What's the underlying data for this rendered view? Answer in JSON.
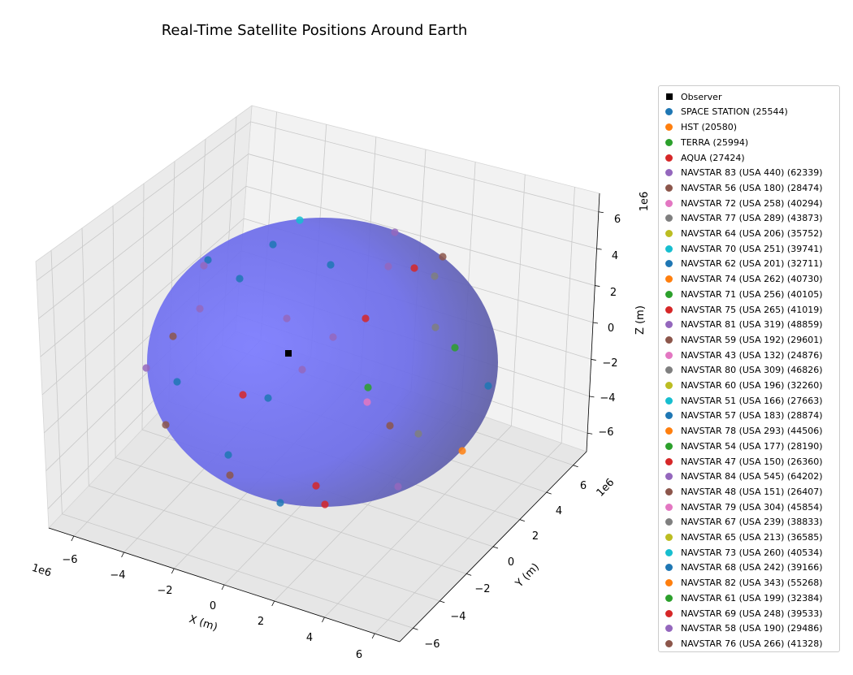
{
  "chart_data": {
    "type": "scatter",
    "projection": "3d",
    "title": "Real-Time Satellite Positions Around Earth",
    "xlabel": "X (m)",
    "ylabel": "Y (m)",
    "zlabel": "Z (m)",
    "x_offset_label": "1e6",
    "y_offset_label": "1e6",
    "z_offset_label": "1e6",
    "xlim": [
      -7,
      7
    ],
    "ylim": [
      -7,
      7
    ],
    "zlim": [
      -7,
      7
    ],
    "x_ticks": [
      "−6",
      "−4",
      "−2",
      "0",
      "2",
      "4",
      "6"
    ],
    "y_ticks": [
      "−6",
      "−4",
      "−2",
      "0",
      "2",
      "4",
      "6"
    ],
    "z_ticks": [
      "6",
      "4",
      "2",
      "0",
      "−2",
      "−4",
      "−6"
    ],
    "grid": true,
    "legend_position": "outside right",
    "surface": {
      "name": "Earth",
      "radius": 6.371,
      "color": "#6d6dff"
    },
    "series": [
      {
        "name": "Observer",
        "marker": "square",
        "color": "#000000"
      },
      {
        "name": "SPACE STATION (25544)",
        "color": "#1f77b4"
      },
      {
        "name": "HST (20580)",
        "color": "#ff7f0e"
      },
      {
        "name": "TERRA (25994)",
        "color": "#2ca02c"
      },
      {
        "name": "AQUA (27424)",
        "color": "#d62728"
      },
      {
        "name": "NAVSTAR 83 (USA 440) (62339)",
        "color": "#9467bd"
      },
      {
        "name": "NAVSTAR 56 (USA 180) (28474)",
        "color": "#8c564b"
      },
      {
        "name": "NAVSTAR 72 (USA 258) (40294)",
        "color": "#e377c2"
      },
      {
        "name": "NAVSTAR 77 (USA 289) (43873)",
        "color": "#7f7f7f"
      },
      {
        "name": "NAVSTAR 64 (USA 206) (35752)",
        "color": "#bcbd22"
      },
      {
        "name": "NAVSTAR 70 (USA 251) (39741)",
        "color": "#17becf"
      },
      {
        "name": "NAVSTAR 62 (USA 201) (32711)",
        "color": "#1f77b4"
      },
      {
        "name": "NAVSTAR 74 (USA 262) (40730)",
        "color": "#ff7f0e"
      },
      {
        "name": "NAVSTAR 71 (USA 256) (40105)",
        "color": "#2ca02c"
      },
      {
        "name": "NAVSTAR 75 (USA 265) (41019)",
        "color": "#d62728"
      },
      {
        "name": "NAVSTAR 81 (USA 319) (48859)",
        "color": "#9467bd"
      },
      {
        "name": "NAVSTAR 59 (USA 192) (29601)",
        "color": "#8c564b"
      },
      {
        "name": "NAVSTAR 43 (USA 132) (24876)",
        "color": "#e377c2"
      },
      {
        "name": "NAVSTAR 80 (USA 309) (46826)",
        "color": "#7f7f7f"
      },
      {
        "name": "NAVSTAR 60 (USA 196) (32260)",
        "color": "#bcbd22"
      },
      {
        "name": "NAVSTAR 51 (USA 166) (27663)",
        "color": "#17becf"
      },
      {
        "name": "NAVSTAR 57 (USA 183) (28874)",
        "color": "#1f77b4"
      },
      {
        "name": "NAVSTAR 78 (USA 293) (44506)",
        "color": "#ff7f0e"
      },
      {
        "name": "NAVSTAR 54 (USA 177) (28190)",
        "color": "#2ca02c"
      },
      {
        "name": "NAVSTAR 47 (USA 150) (26360)",
        "color": "#d62728"
      },
      {
        "name": "NAVSTAR 84 (USA 545) (64202)",
        "color": "#9467bd"
      },
      {
        "name": "NAVSTAR 48 (USA 151) (26407)",
        "color": "#8c564b"
      },
      {
        "name": "NAVSTAR 79 (USA 304) (45854)",
        "color": "#e377c2"
      },
      {
        "name": "NAVSTAR 67 (USA 239) (38833)",
        "color": "#7f7f7f"
      },
      {
        "name": "NAVSTAR 65 (USA 213) (36585)",
        "color": "#bcbd22"
      },
      {
        "name": "NAVSTAR 73 (USA 260) (40534)",
        "color": "#17becf"
      },
      {
        "name": "NAVSTAR 68 (USA 242) (39166)",
        "color": "#1f77b4"
      },
      {
        "name": "NAVSTAR 82 (USA 343) (55268)",
        "color": "#ff7f0e"
      },
      {
        "name": "NAVSTAR 61 (USA 199) (32384)",
        "color": "#2ca02c"
      },
      {
        "name": "NAVSTAR 69 (USA 248) (39533)",
        "color": "#d62728"
      },
      {
        "name": "NAVSTAR 58 (USA 190) (29486)",
        "color": "#9467bd"
      },
      {
        "name": "NAVSTAR 76 (USA 266) (41328)",
        "color": "#8c564b"
      }
    ]
  }
}
